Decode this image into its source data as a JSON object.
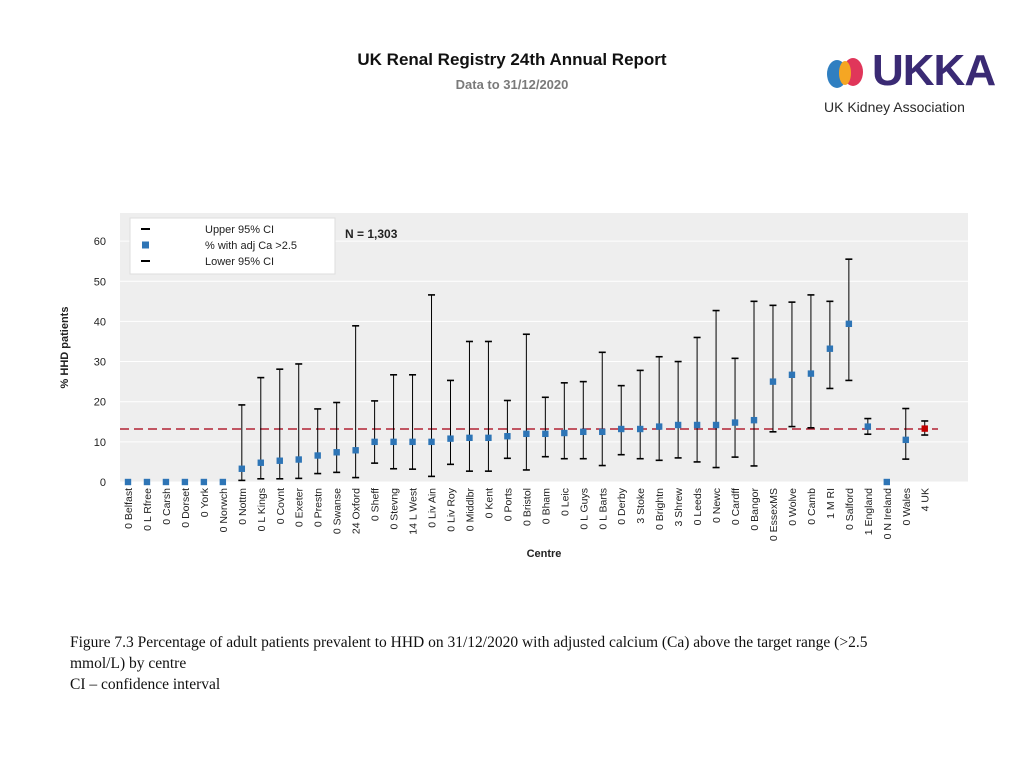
{
  "header": {
    "title": "UK Renal Registry 24th Annual Report",
    "subtitle": "Data to 31/12/2020"
  },
  "logo": {
    "text": "UKKA",
    "subtitle": "UK Kidney Association",
    "colors": {
      "blue": "#2f7fc1",
      "yellow": "#f5a623",
      "red": "#e0365a",
      "purple": "#3a2a74"
    }
  },
  "chart_data": {
    "type": "scatter",
    "title": "",
    "xlabel": "Centre",
    "ylabel": "% HHD patients",
    "ylim": [
      0,
      67
    ],
    "yticks": [
      0,
      10,
      20,
      30,
      40,
      50,
      60
    ],
    "grid": true,
    "annotation": "N = 1,303",
    "reference_line": {
      "value": 13.2,
      "style": "dashed",
      "color": "#b22234"
    },
    "legend": {
      "placement": "top-left",
      "entries": [
        "Upper 95% CI",
        "% with adj Ca >2.5",
        "Lower 95% CI"
      ]
    },
    "colors": {
      "point": "#2e75b6",
      "highlight": "#c00000",
      "ci": "#000000",
      "plot_bg": "#eeeeee"
    },
    "categories": [
      "0 Belfast",
      "0 L Rfree",
      "0 Carsh",
      "0 Dorset",
      "0 York",
      "0 Norwch",
      "0 Nottm",
      "0 L Kings",
      "0 Covnt",
      "0 Exeter",
      "0 Prestn",
      "0 Swanse",
      "24 Oxford",
      "0 Sheff",
      "0 Stevng",
      "14 L West",
      "0 Liv Ain",
      "0 Liv Roy",
      "0 Middlbr",
      "0 Kent",
      "0 Ports",
      "0 Bristol",
      "0 Bham",
      "0 Leic",
      "0 L Guys",
      "0 L Barts",
      "0 Derby",
      "3 Stoke",
      "0 Brightn",
      "3 Shrew",
      "0 Leeds",
      "0 Newc",
      "0 Cardff",
      "0 Bangor",
      "0 EssexMS",
      "0 Wolve",
      "0 Camb",
      "1 M RI",
      "0 Salford",
      "1 England",
      "0 N Ireland",
      "0 Wales",
      "4 UK"
    ],
    "values": [
      0,
      0,
      0,
      0,
      0,
      0,
      3.3,
      4.8,
      5.3,
      5.6,
      6.6,
      7.4,
      7.9,
      10,
      10,
      10,
      10,
      10.8,
      11,
      11,
      11.4,
      12,
      12,
      12.2,
      12.5,
      12.5,
      13.2,
      13.2,
      13.8,
      14.2,
      14.2,
      14.2,
      14.8,
      15.4,
      25,
      26.7,
      27,
      33.2,
      39.4,
      13.8,
      0,
      10.5,
      13.3
    ],
    "lower": [
      null,
      null,
      null,
      null,
      null,
      null,
      0.4,
      0.8,
      0.8,
      0.9,
      2.1,
      2.4,
      1.1,
      4.7,
      3.3,
      3.2,
      1.4,
      4.4,
      2.7,
      2.7,
      5.9,
      3,
      6.3,
      5.8,
      5.8,
      4.1,
      6.8,
      5.8,
      5.4,
      6,
      5,
      3.6,
      6.2,
      4,
      12.5,
      13.8,
      13.5,
      23.3,
      25.3,
      11.9,
      null,
      5.7,
      11.7
    ],
    "upper": [
      null,
      null,
      null,
      null,
      null,
      null,
      19.2,
      26,
      28.1,
      29.4,
      18.2,
      19.8,
      38.9,
      20.2,
      26.7,
      26.7,
      46.6,
      25.3,
      35,
      35,
      20.3,
      36.8,
      21.1,
      24.7,
      25,
      32.3,
      24,
      27.8,
      31.2,
      30,
      36,
      42.7,
      30.8,
      45,
      44,
      44.8,
      46.6,
      45,
      55.5,
      15.8,
      null,
      18.3,
      15.2
    ],
    "highlight_category": "4 UK"
  },
  "caption": {
    "lines": [
      "Figure 7.3 Percentage of adult patients prevalent to HHD on 31/12/2020 with adjusted calcium (Ca) above the target range (>2.5",
      "mmol/L) by centre",
      "CI – confidence interval"
    ]
  }
}
